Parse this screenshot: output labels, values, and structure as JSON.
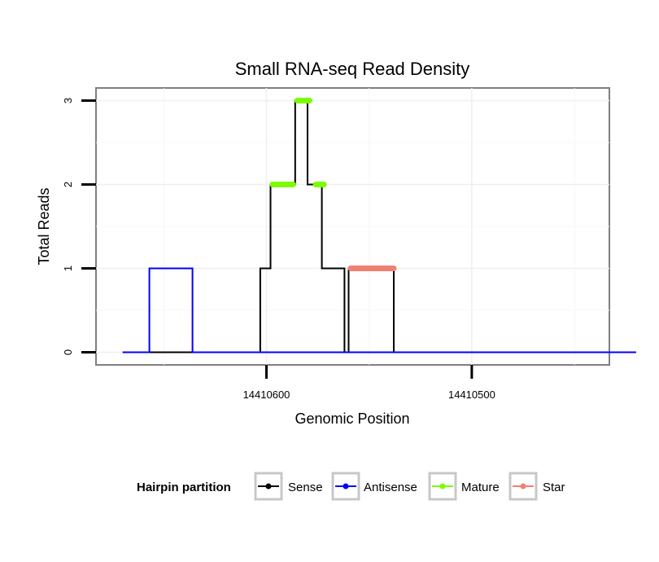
{
  "chart_data": {
    "type": "line",
    "title": "Small RNA-seq Read Density",
    "xlabel": "Genomic Position",
    "ylabel": "Total Reads",
    "x_reversed": true,
    "xlim": [
      14410683,
      14410433
    ],
    "ylim": [
      -0.15,
      3.15
    ],
    "x_ticks": [
      14410600,
      14410500
    ],
    "x_tick_labels": [
      "14410600",
      "14410500"
    ],
    "y_ticks": [
      0,
      1,
      2,
      3
    ],
    "y_tick_labels": [
      "0",
      "1",
      "2",
      "3"
    ],
    "grid": true,
    "legend": {
      "title": "Hairpin partition",
      "position": "bottom",
      "entries": [
        {
          "name": "Sense",
          "color": "#000000"
        },
        {
          "name": "Antisense",
          "color": "#0000ff"
        },
        {
          "name": "Mature",
          "color": "#7cfc00"
        },
        {
          "name": "Star",
          "color": "#f08070"
        }
      ]
    },
    "series": [
      {
        "name": "Sense",
        "color": "#000000",
        "style": "line",
        "points": [
          [
            14410670,
            0
          ],
          [
            14410603,
            0
          ],
          [
            14410603,
            1
          ],
          [
            14410598,
            1
          ],
          [
            14410598,
            2
          ],
          [
            14410586,
            2
          ],
          [
            14410586,
            3
          ],
          [
            14410580,
            3
          ],
          [
            14410580,
            2
          ],
          [
            14410573,
            2
          ],
          [
            14410573,
            1
          ],
          [
            14410562,
            1
          ],
          [
            14410562,
            0
          ],
          [
            14410560,
            0
          ],
          [
            14410560,
            1
          ],
          [
            14410538,
            1
          ],
          [
            14410538,
            0
          ],
          [
            14410420,
            0
          ]
        ]
      },
      {
        "name": "Antisense",
        "color": "#0000ff",
        "style": "line",
        "points": [
          [
            14410670,
            0
          ],
          [
            14410657,
            0
          ],
          [
            14410657,
            1
          ],
          [
            14410636,
            1
          ],
          [
            14410636,
            0
          ],
          [
            14410420,
            0
          ]
        ]
      },
      {
        "name": "Mature",
        "color": "#7cfc00",
        "style": "thick",
        "segments": [
          [
            [
              14410597,
              2
            ],
            [
              14410587,
              2
            ]
          ],
          [
            [
              14410585,
              3
            ],
            [
              14410579,
              3
            ]
          ],
          [
            [
              14410576,
              2
            ],
            [
              14410572,
              2
            ]
          ]
        ]
      },
      {
        "name": "Star",
        "color": "#f08070",
        "style": "thick",
        "segments": [
          [
            [
              14410559,
              1
            ],
            [
              14410538,
              1
            ]
          ]
        ]
      }
    ]
  }
}
